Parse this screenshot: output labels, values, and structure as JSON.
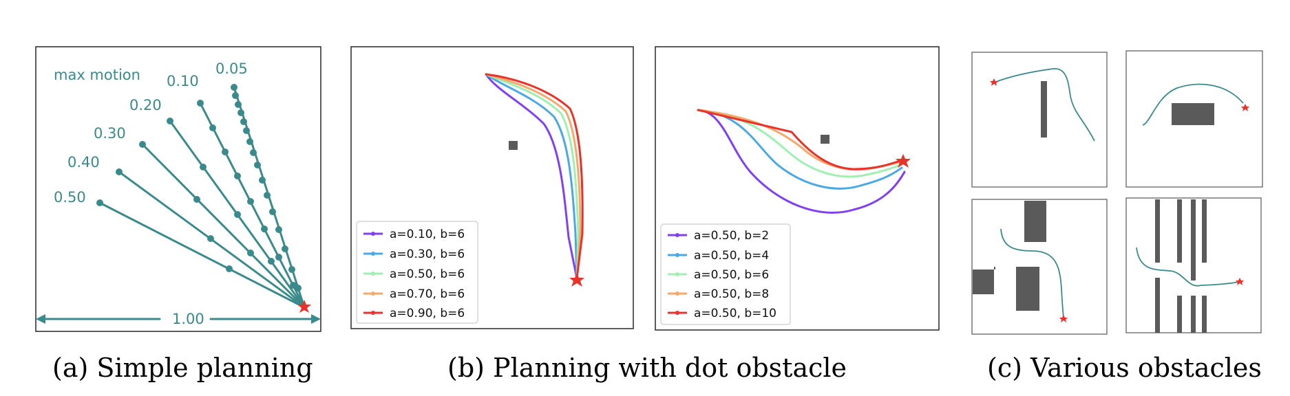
{
  "captions": {
    "a": "(a) Simple planning",
    "b": "(b) Planning with dot obstacle",
    "c": "(c) Various obstacles"
  },
  "panel_a": {
    "header": "max motion",
    "ray_labels": [
      "0.05",
      "0.10",
      "0.20",
      "0.30",
      "0.40",
      "0.50"
    ],
    "axis_label": "1.00",
    "color": "#3a8a8c",
    "goal_color": "#e8332a"
  },
  "panel_b_left": {
    "legend": [
      "a=0.10, b=6",
      "a=0.30, b=6",
      "a=0.50, b=6",
      "a=0.70, b=6",
      "a=0.90, b=6"
    ],
    "colors": [
      "#7f3ff2",
      "#4aa8e4",
      "#9ef0b0",
      "#f5a86a",
      "#e8332a"
    ]
  },
  "panel_b_right": {
    "legend": [
      "a=0.50, b=2",
      "a=0.50, b=4",
      "a=0.50, b=6",
      "a=0.50, b=8",
      "a=0.50, b=10"
    ],
    "colors": [
      "#7f3ff2",
      "#4aa8e4",
      "#9ef0b0",
      "#f5a86a",
      "#e8332a"
    ]
  },
  "panel_c": {
    "subplots": 4,
    "path_color": "#3a8a8c",
    "obstacle_color": "#5a5a5a",
    "goal_color": "#e8332a"
  }
}
